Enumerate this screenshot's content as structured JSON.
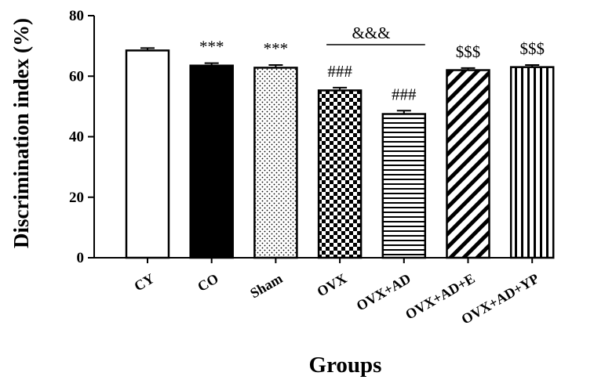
{
  "chart_data": {
    "type": "bar",
    "title": "",
    "xlabel": "Groups",
    "ylabel": "Discrimination index (%)",
    "ylim": [
      0,
      80
    ],
    "yticks": [
      0,
      20,
      40,
      60,
      80
    ],
    "grid": false,
    "categories": [
      "CY",
      "CO",
      "Sham",
      "OVX",
      "OVX+AD",
      "OVX+AD+E",
      "OVX+AD+YP"
    ],
    "values": [
      68.5,
      63.5,
      62.8,
      55.3,
      47.5,
      62.0,
      63.0
    ],
    "errors": [
      0.8,
      0.8,
      0.9,
      0.9,
      1.1,
      0.7,
      0.7
    ],
    "patterns": [
      "white",
      "solid-black",
      "dots",
      "checker",
      "horizontal-lines",
      "diagonal-lines",
      "vertical-lines"
    ],
    "annotations": [
      {
        "category": "CO",
        "text": "***"
      },
      {
        "category": "Sham",
        "text": "***"
      },
      {
        "category": "OVX",
        "text": "###"
      },
      {
        "category": "OVX+AD",
        "text": "###"
      },
      {
        "category": "OVX+AD+E",
        "text": "$$$"
      },
      {
        "category": "OVX+AD+YP",
        "text": "$$$"
      }
    ],
    "bracket": {
      "from": "OVX",
      "to": "OVX+AD",
      "text": "&&&"
    },
    "colors": {
      "bar_edge": "#000000",
      "bar_fill": "#ffffff",
      "ink": "#000000"
    }
  }
}
